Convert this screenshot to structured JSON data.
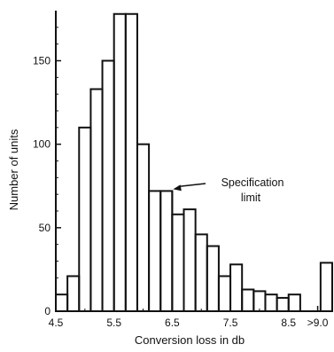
{
  "chart_data": {
    "type": "bar",
    "subtype": "histogram",
    "title": "",
    "xlabel": "Conversion loss in db",
    "ylabel": "Number of units",
    "xlim": [
      4.5,
      9.25
    ],
    "ylim": [
      0,
      180
    ],
    "grid": false,
    "x_tick_labels": [
      "4.5",
      "5.5",
      "6.5",
      "7.5",
      "8.5",
      ">9.0"
    ],
    "x_tick_values": [
      4.5,
      5.5,
      6.5,
      7.5,
      8.5,
      9.0
    ],
    "y_tick_labels": [
      "0",
      "50",
      "100",
      "150"
    ],
    "y_tick_values": [
      0,
      50,
      100,
      150
    ],
    "bin_width": 0.2,
    "bins": [
      {
        "x0": 4.5,
        "x1": 4.7,
        "value": 10
      },
      {
        "x0": 4.7,
        "x1": 4.9,
        "value": 21
      },
      {
        "x0": 4.9,
        "x1": 5.1,
        "value": 110
      },
      {
        "x0": 5.1,
        "x1": 5.3,
        "value": 133
      },
      {
        "x0": 5.3,
        "x1": 5.5,
        "value": 150
      },
      {
        "x0": 5.5,
        "x1": 5.7,
        "value": 178
      },
      {
        "x0": 5.7,
        "x1": 5.9,
        "value": 178
      },
      {
        "x0": 5.9,
        "x1": 6.1,
        "value": 100
      },
      {
        "x0": 6.1,
        "x1": 6.3,
        "value": 72
      },
      {
        "x0": 6.3,
        "x1": 6.5,
        "value": 72
      },
      {
        "x0": 6.5,
        "x1": 6.7,
        "value": 58
      },
      {
        "x0": 6.7,
        "x1": 6.9,
        "value": 61
      },
      {
        "x0": 6.9,
        "x1": 7.1,
        "value": 46
      },
      {
        "x0": 7.1,
        "x1": 7.3,
        "value": 39
      },
      {
        "x0": 7.3,
        "x1": 7.5,
        "value": 21
      },
      {
        "x0": 7.5,
        "x1": 7.7,
        "value": 28
      },
      {
        "x0": 7.7,
        "x1": 7.9,
        "value": 13
      },
      {
        "x0": 7.9,
        "x1": 8.1,
        "value": 12
      },
      {
        "x0": 8.1,
        "x1": 8.3,
        "value": 10
      },
      {
        "x0": 8.3,
        "x1": 8.5,
        "value": 8
      },
      {
        "x0": 8.5,
        "x1": 8.7,
        "value": 10
      },
      {
        "x0": 9.05,
        "x1": 9.25,
        "value": 29,
        "label": ">9.0"
      }
    ],
    "annotations": [
      {
        "text_lines": [
          "Specification",
          "limit"
        ],
        "x": 6.5,
        "y": 72,
        "kind": "vertical-line-with-arrow"
      }
    ]
  }
}
